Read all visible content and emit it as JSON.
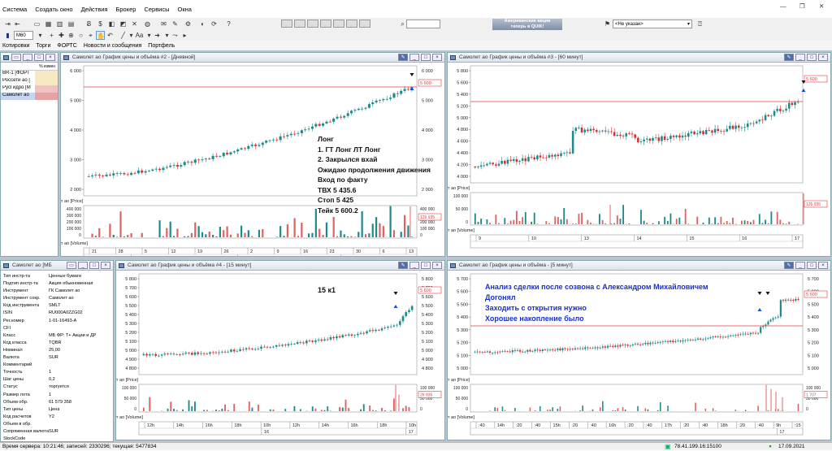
{
  "menu": [
    "Система",
    "Создать окно",
    "Действия",
    "Брокер",
    "Сервисы",
    "Окна"
  ],
  "toolbar": {
    "instrument": "М60",
    "ad_banner": "Американские акции\nтеперь в QUIK!",
    "class_select": "<Не указан>"
  },
  "tabs": [
    "Котировки",
    "Торги",
    "ФОРТС",
    "Новости и сообщения",
    "Портфель"
  ],
  "watchlist": {
    "header": "% измен",
    "items": [
      "BR-1 [ФОРТ",
      "Россети ао [",
      "РусГидро [М",
      "Самолет ао"
    ]
  },
  "win2": {
    "title": "Самолет ао График цены и объёма #2 - [Дневной]",
    "price_legend": "Самолет ао [Price]",
    "vol_legend": "Самолет ао [Volume]",
    "y_ticks": [
      "6 000",
      "5 000",
      "4 000",
      "3 000",
      "2 000"
    ],
    "y_ticks_r": [
      "6 000",
      "5 000",
      "4 000",
      "3 000",
      "2 000"
    ],
    "cur_price": "5 600",
    "vol_ticks": [
      "400 000",
      "300 000",
      "200 000",
      "100 000",
      "0"
    ],
    "cur_vol": "126 935",
    "x_days": [
      "21",
      "28",
      "5",
      "12",
      "19",
      "26",
      "2",
      "9",
      "16",
      "23",
      "30",
      "6",
      "13"
    ],
    "x_months": [
      "Jul",
      "Aug",
      "Sep"
    ]
  },
  "note": [
    "Лонг",
    "1. ГТ Лонг ЛТ Лонг",
    "2. Закрылся вхай",
    "Ожидаю продолжения движения",
    "Вход по факту",
    "ТВХ 5 435.6",
    "Стоп 5 425",
    "Тейк 5 600.2"
  ],
  "win3": {
    "title": "Самолет ао График цены и объёма #3 - [60 минут]",
    "price_legend": "Самолет ао [Price]",
    "vol_legend": "Самолет ао [Volume]",
    "y_ticks": [
      "5 800",
      "5 600",
      "5 400",
      "5 200",
      "5 000",
      "4 800",
      "4 600",
      "4 400",
      "4 200",
      "4 000"
    ],
    "cur_price": "5 600",
    "vol_ticks": [
      "100 000",
      "50 000",
      "0"
    ],
    "cur_vol": "126 935",
    "x_labels": [
      "9",
      "10",
      "13",
      "14",
      "15",
      "16",
      "17"
    ]
  },
  "info": {
    "title": "Самолет ао [МБ",
    "rows": [
      [
        "Тип инстр-та",
        "Ценные бумаги"
      ],
      [
        "Подтип инстр-та",
        "Акция обыкновенная"
      ],
      [
        "Инструмент",
        "ГК Самолет ао"
      ],
      [
        "Инструмент сокр.",
        "Самолет ао"
      ],
      [
        "Код инструмента",
        "SMLT"
      ],
      [
        "ISIN",
        "RU000A0ZZG02"
      ],
      [
        "Рег.номер",
        "1-01-16493-A"
      ],
      [
        "CFI",
        ""
      ],
      [
        "Класс",
        "МБ ФР: Т+ Акции и ДР"
      ],
      [
        "Код класса",
        "TQBR"
      ],
      [
        "Номинал",
        "25,00"
      ],
      [
        "Валюта",
        "SUR"
      ],
      [
        "Комментарий",
        ""
      ],
      [
        "Точность",
        "1"
      ],
      [
        "Шаг цены",
        "0,2"
      ],
      [
        "Статус",
        "торгуется"
      ],
      [
        "Размер лота",
        "1"
      ],
      [
        "Объем обр.",
        "61 579 358"
      ],
      [
        "Тип цены",
        "Цена"
      ],
      [
        "Код расчетов",
        "Y2"
      ],
      [
        "Объем в обр.",
        ""
      ],
      [
        "Сопряженная валюта",
        "SUR"
      ],
      [
        "StockCode",
        ""
      ]
    ]
  },
  "win4": {
    "title": "Самолет ао График цены и объёма #4 - [15 минут]",
    "label": "15 к1",
    "price_legend": "Самолет ао [Price]",
    "vol_legend": "Самолет ао [Volume]",
    "y_ticks": [
      "5 800",
      "5 700",
      "5 600",
      "5 500",
      "5 400",
      "5 300",
      "5 200",
      "5 100",
      "5 000",
      "4 900",
      "4 800"
    ],
    "cur_price": "5 600",
    "vol_ticks": [
      "100 000",
      "50 000",
      "0"
    ],
    "cur_vol": "26 935",
    "x_labels": [
      "12h",
      "14h",
      "16h",
      "18h",
      "10h",
      "12h",
      "14h",
      "16h",
      "18h",
      "10h"
    ],
    "x_days": [
      "16",
      "17"
    ]
  },
  "win5": {
    "title": "Самолет ао График цены и объёма - [5 минут]",
    "price_legend": "Самолет ао [Price]",
    "vol_legend": "Самолет ао [Volume]",
    "analysis": [
      "Анализ сделки после созвона с Александром Михайловичем",
      "Догонял",
      "Заходить с открытия нужно",
      "Хорошее накопление было"
    ],
    "y_ticks": [
      "5 700",
      "5 600",
      "5 500",
      "5 400",
      "5 300",
      "5 200",
      "5 100",
      "5 000"
    ],
    "cur_price": "5 600",
    "vol_ticks": [
      "100 000",
      "50 000",
      "0"
    ],
    "cur_vol": "1 707",
    "x_labels": [
      ":40",
      "14h",
      ":20",
      ":40",
      "15h",
      ":20",
      ":40",
      "16h",
      ":20",
      ":40",
      "17h",
      ":20",
      ":40",
      "18h",
      ":20",
      ":40",
      "9h",
      ":15"
    ],
    "x_days": [
      "17"
    ]
  },
  "status": {
    "left": "Время сервера: 10:21:46; записей: 2330296; текущая: 5477834",
    "ip": "78.41.199.16:15100",
    "date": "17.09.2021"
  }
}
